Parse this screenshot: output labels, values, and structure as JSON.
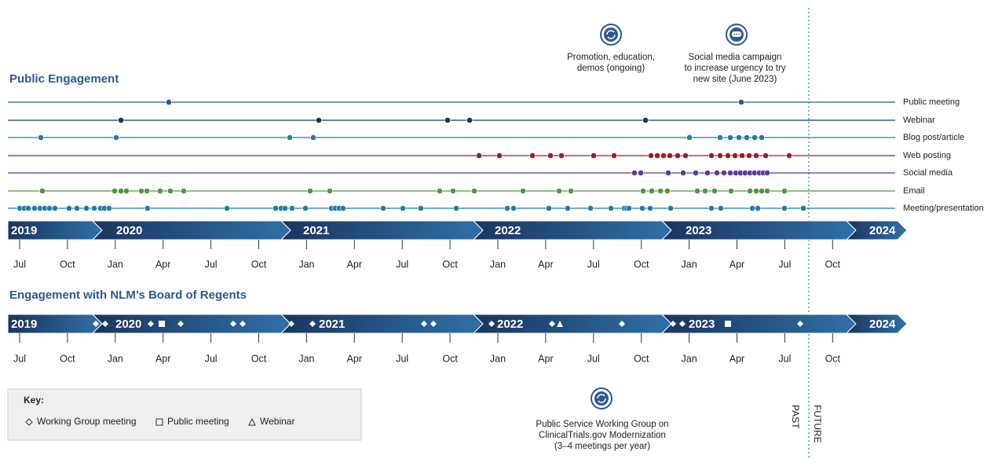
{
  "public_engagement": {
    "title": "Public Engagement",
    "rows": [
      "Public meeting",
      "Webinar",
      "Blog post/article",
      "Web posting",
      "Social media",
      "Email",
      "Meeting/presentation"
    ],
    "years": [
      "2019",
      "2020",
      "2021",
      "2022",
      "2023",
      "2024"
    ],
    "months": [
      "Jul",
      "Oct",
      "Jan",
      "Apr",
      "Jul",
      "Oct",
      "Jan",
      "Apr",
      "Jul",
      "Oct",
      "Jan",
      "Apr",
      "Jul",
      "Oct",
      "Jan",
      "Apr",
      "Jul",
      "Oct"
    ]
  },
  "board": {
    "title": "Engagement with NLM’s Board of Regents",
    "years": [
      "2019",
      "2020",
      "2021",
      "2022",
      "2023",
      "2024"
    ],
    "months": [
      "Jul",
      "Oct",
      "Jan",
      "Apr",
      "Jul",
      "Oct",
      "Jan",
      "Apr",
      "Jul",
      "Oct",
      "Jan",
      "Apr",
      "Jul",
      "Oct",
      "Jan",
      "Apr",
      "Jul",
      "Oct"
    ]
  },
  "annotations": {
    "promotion": [
      "Promotion, education,",
      "demos (ongoing)"
    ],
    "social": [
      "Social media campaign",
      "to increase urgency to try",
      "new site (June 2023)"
    ],
    "working_group": [
      "Public Service Working Group on",
      "ClinicalTrials.gov Modernization",
      "(3–4 meetings per year)"
    ]
  },
  "key": {
    "title": "Key:",
    "items": [
      "Working Group meeting",
      "Public meeting",
      "Webinar"
    ]
  },
  "past": "PAST",
  "future": "FUTURE"
}
